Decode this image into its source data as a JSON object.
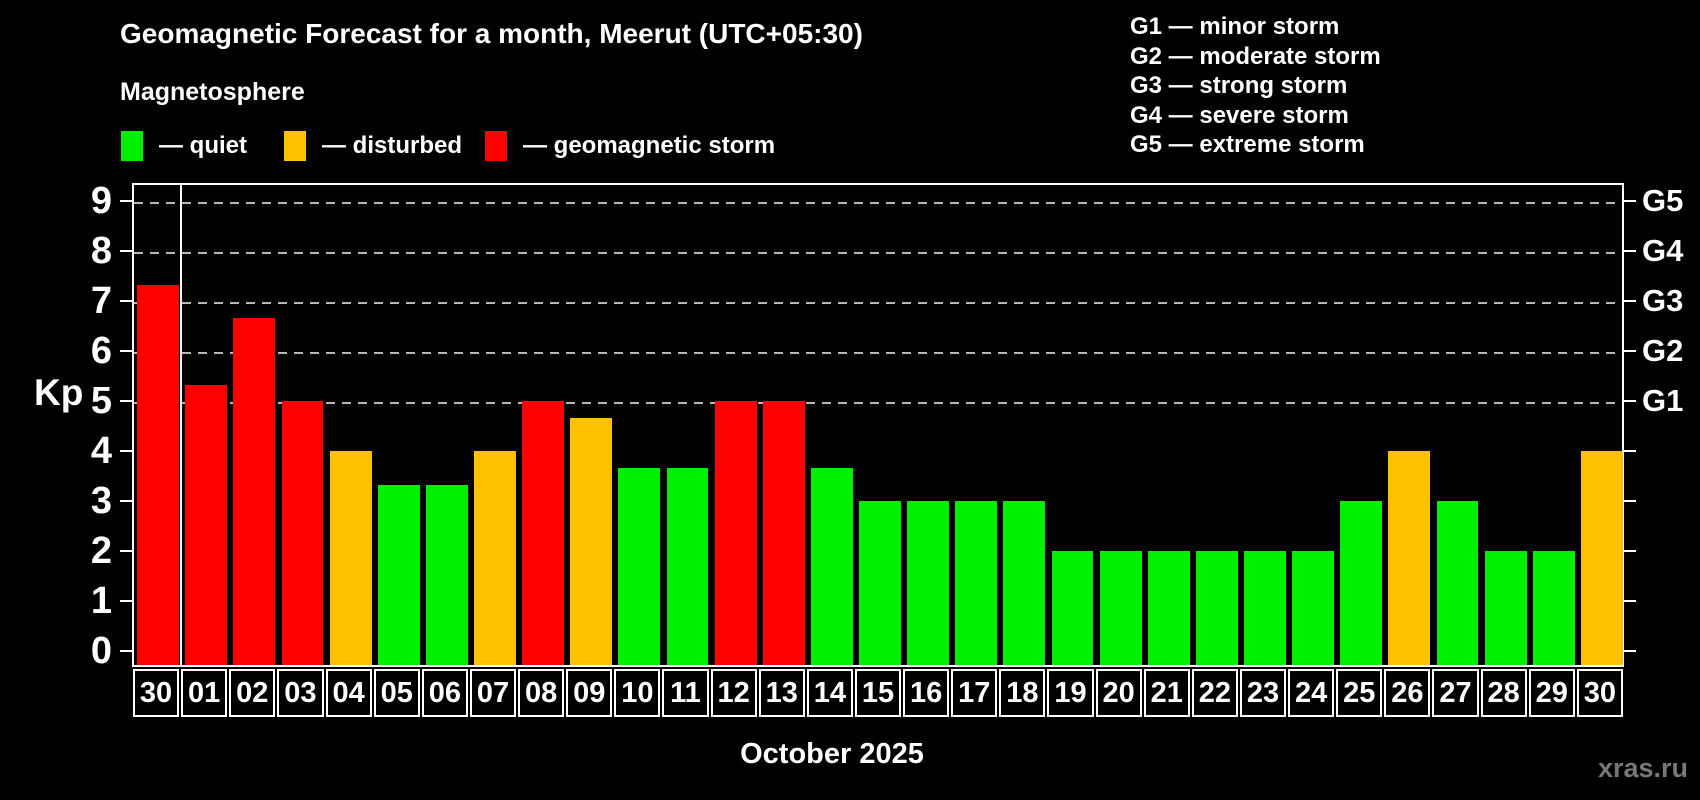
{
  "header": {
    "title": "Geomagnetic Forecast for a month, Meerut (UTC+05:30)",
    "subtitle": "Magnetosphere",
    "legend": [
      {
        "key": "quiet",
        "label": "— quiet",
        "color": "#00ee00"
      },
      {
        "key": "disturbed",
        "label": "— disturbed",
        "color": "#ffc000"
      },
      {
        "key": "storm",
        "label": "— geomagnetic storm",
        "color": "#ff0000"
      }
    ],
    "g_scale_legend": [
      "G1 — minor storm",
      "G2 — moderate storm",
      "G3 — strong storm",
      "G4 — severe storm",
      "G5 — extreme storm"
    ]
  },
  "chart_data": {
    "type": "bar",
    "title": "Geomagnetic Forecast for a month, Meerut (UTC+05:30)",
    "xlabel": "October 2025",
    "ylabel": "Kp",
    "ylim": [
      0,
      9.6
    ],
    "legend_position": "top",
    "grid": "horizontal dashed lines at Kp 5,6,7,8,9",
    "categories": [
      "30",
      "01",
      "02",
      "03",
      "04",
      "05",
      "06",
      "07",
      "08",
      "09",
      "10",
      "11",
      "12",
      "13",
      "14",
      "15",
      "16",
      "17",
      "18",
      "19",
      "20",
      "21",
      "22",
      "23",
      "24",
      "25",
      "26",
      "27",
      "28",
      "29",
      "30"
    ],
    "values": [
      7.33,
      5.33,
      6.67,
      5.0,
      4.0,
      3.33,
      3.33,
      4.0,
      5.0,
      4.67,
      3.67,
      3.67,
      5.0,
      5.0,
      3.67,
      3.0,
      3.0,
      3.0,
      3.0,
      2.0,
      2.0,
      2.0,
      2.0,
      2.0,
      2.0,
      3.0,
      4.0,
      3.0,
      2.0,
      2.0,
      4.0
    ],
    "statuses": [
      "storm",
      "storm",
      "storm",
      "storm",
      "disturbed",
      "quiet",
      "quiet",
      "disturbed",
      "storm",
      "disturbed",
      "quiet",
      "quiet",
      "storm",
      "storm",
      "quiet",
      "quiet",
      "quiet",
      "quiet",
      "quiet",
      "quiet",
      "quiet",
      "quiet",
      "quiet",
      "quiet",
      "quiet",
      "quiet",
      "disturbed",
      "quiet",
      "quiet",
      "quiet",
      "disturbed"
    ],
    "status_colors": {
      "quiet": "#00ee00",
      "disturbed": "#ffc000",
      "storm": "#ff0000"
    },
    "month_separator_after_index": 0,
    "y_axis": {
      "ticks": [
        0,
        1,
        2,
        3,
        4,
        5,
        6,
        7,
        8,
        9
      ],
      "gridlines": [
        5,
        6,
        7,
        8,
        9
      ]
    },
    "right_axis": [
      {
        "kp": 5,
        "label": "G1"
      },
      {
        "kp": 6,
        "label": "G2"
      },
      {
        "kp": 7,
        "label": "G3"
      },
      {
        "kp": 8,
        "label": "G4"
      },
      {
        "kp": 9,
        "label": "G5"
      }
    ]
  },
  "footer": {
    "xaxis_title": "October 2025",
    "watermark": "xras.ru"
  }
}
